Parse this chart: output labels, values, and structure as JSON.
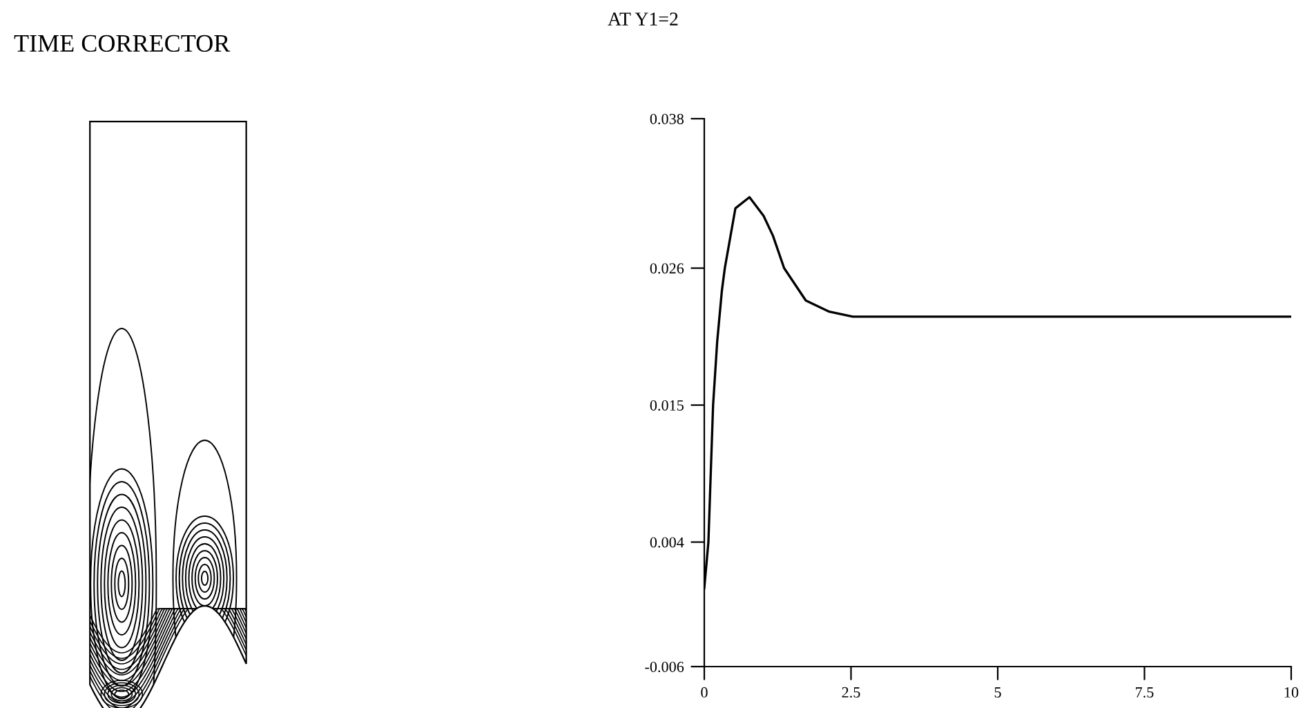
{
  "chart_data": [
    {
      "type": "other",
      "title": "TIME CORRECTOR"
    },
    {
      "type": "line",
      "title": "AT Y1=2",
      "x": [
        0,
        0.07,
        0.15,
        0.22,
        0.3,
        0.35,
        0.53,
        0.77,
        1.01,
        1.17,
        1.36,
        1.73,
        2.13,
        2.53,
        5,
        7.5,
        10
      ],
      "series": [
        {
          "color": "#000000",
          "values": [
            0.0003,
            0.004,
            0.015,
            0.0201,
            0.0242,
            0.026,
            0.0308,
            0.0317,
            0.0302,
            0.0286,
            0.026,
            0.0234,
            0.0225,
            0.0221,
            0.0221,
            0.0221,
            0.0221
          ]
        }
      ],
      "xlim": [
        0,
        10
      ],
      "xticks": [
        0,
        2.5,
        5,
        7.5,
        10
      ],
      "ylim": [
        -0.006,
        0.038
      ],
      "yticks": [
        -0.006,
        0.004,
        0.015,
        0.026,
        0.038
      ],
      "grid": false,
      "legend": false,
      "marker": "none",
      "line_style": "solid"
    }
  ]
}
